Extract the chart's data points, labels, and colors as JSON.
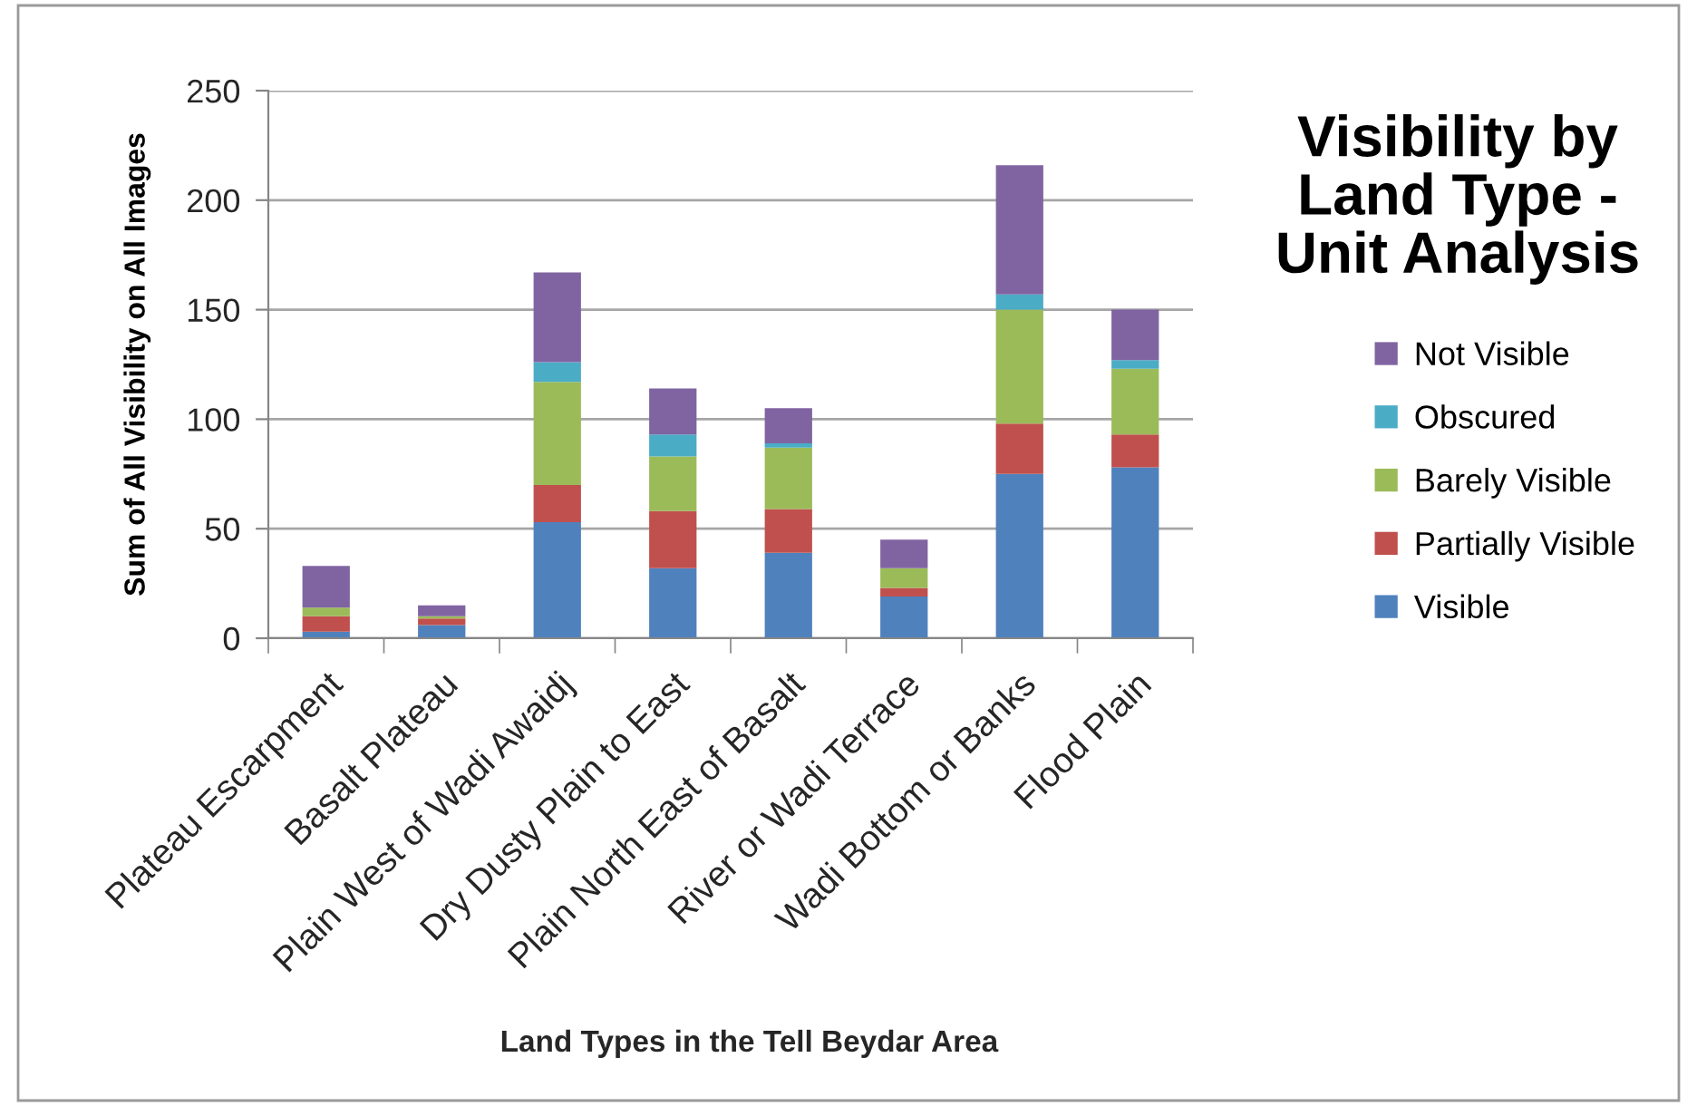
{
  "chart_data": {
    "type": "bar",
    "stacked": true,
    "title": "Visibility by\nLand Type -\nUnit Analysis",
    "xlabel": "Land Types in the Tell Beydar Area",
    "ylabel": "Sum of All Visibility on All Images",
    "categories": [
      "Plateau Escarpment",
      "Basalt Plateau",
      "Plain West of Wadi Awaidj",
      "Dry Dusty Plain to East",
      "Plain North East of Basalt",
      "River or Wadi Terrace",
      "Wadi Bottom or Banks",
      "Flood Plain"
    ],
    "series": [
      {
        "name": "Visible",
        "color": "#4f81bd",
        "values": [
          3,
          6,
          53,
          32,
          39,
          19,
          75,
          78
        ]
      },
      {
        "name": "Partially Visible",
        "color": "#c0504d",
        "values": [
          7,
          3,
          17,
          26,
          20,
          4,
          23,
          15
        ]
      },
      {
        "name": "Barely Visible",
        "color": "#9bbb59",
        "values": [
          4,
          1,
          47,
          25,
          28,
          9,
          52,
          30
        ]
      },
      {
        "name": "Obscured",
        "color": "#4bacc6",
        "values": [
          null,
          null,
          9,
          10,
          2,
          null,
          7,
          4
        ]
      },
      {
        "name": "Not Visible",
        "color": "#8064a2",
        "values": [
          19,
          5,
          41,
          21,
          16,
          13,
          59,
          23
        ]
      }
    ],
    "ylim": [
      0,
      250
    ],
    "yticks": [
      0,
      50,
      100,
      150,
      200,
      250
    ],
    "grid": "y",
    "legend": "right"
  }
}
